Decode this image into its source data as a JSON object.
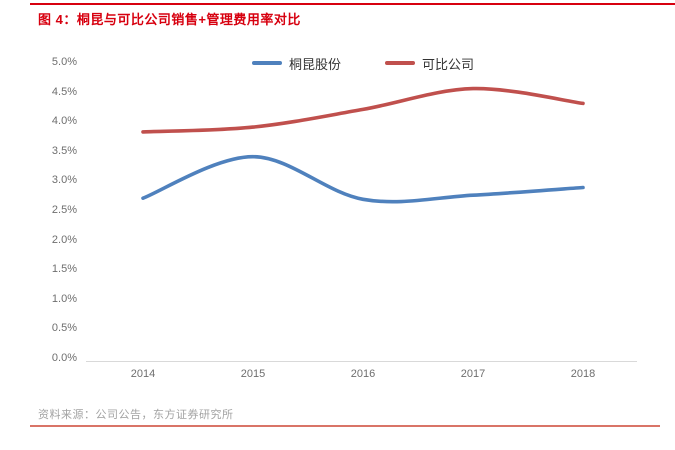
{
  "figure": {
    "title": "图 4：桐昆与可比公司销售+管理费用率对比",
    "source": "资料来源：公司公告，东方证券研究所"
  },
  "colors": {
    "accent_red": "#d7000f",
    "footer_rule": "#d97467",
    "series_blue": "#4f81bd",
    "series_red": "#c0504d",
    "axis_line": "#d9d9d9",
    "tick_text": "#6e6e6e",
    "legend_text": "#333333",
    "source_text": "#a3a3a3"
  },
  "chart_data": {
    "type": "line",
    "title": "桐昆与可比公司销售+管理费用率对比",
    "xlabel": "",
    "ylabel": "",
    "x": [
      "2014",
      "2015",
      "2016",
      "2017",
      "2018"
    ],
    "series": [
      {
        "name": "桐昆股份",
        "color": "#4f81bd",
        "values": [
          2.7,
          3.4,
          2.68,
          2.75,
          2.88
        ]
      },
      {
        "name": "可比公司",
        "color": "#c0504d",
        "values": [
          3.82,
          3.9,
          4.2,
          4.55,
          4.3
        ]
      }
    ],
    "unit": "%",
    "ylim": [
      0.0,
      5.0
    ],
    "ytick_step": 0.5,
    "yticks": [
      {
        "v": 5.0,
        "label": "5.0%"
      },
      {
        "v": 4.5,
        "label": "4.5%"
      },
      {
        "v": 4.0,
        "label": "4.0%"
      },
      {
        "v": 3.5,
        "label": "3.5%"
      },
      {
        "v": 3.0,
        "label": "3.0%"
      },
      {
        "v": 2.5,
        "label": "2.5%"
      },
      {
        "v": 2.0,
        "label": "2.0%"
      },
      {
        "v": 1.5,
        "label": "1.5%"
      },
      {
        "v": 1.0,
        "label": "1.0%"
      },
      {
        "v": 0.5,
        "label": "0.5%"
      },
      {
        "v": 0.0,
        "label": "0.0%"
      }
    ],
    "grid": false,
    "smooth": true,
    "legend_position": "top-center"
  }
}
